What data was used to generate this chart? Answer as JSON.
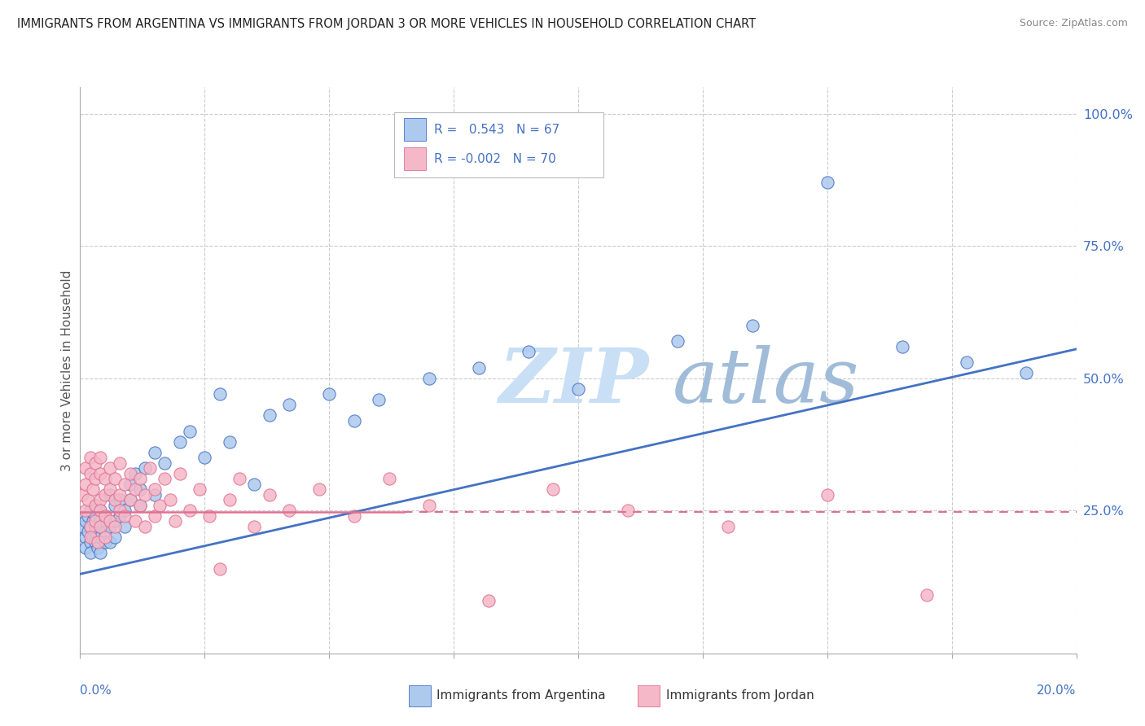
{
  "title": "IMMIGRANTS FROM ARGENTINA VS IMMIGRANTS FROM JORDAN 3 OR MORE VEHICLES IN HOUSEHOLD CORRELATION CHART",
  "source": "Source: ZipAtlas.com",
  "ylabel_label": "3 or more Vehicles in Household",
  "legend_argentina": "Immigrants from Argentina",
  "legend_jordan": "Immigrants from Jordan",
  "R_argentina": 0.543,
  "N_argentina": 67,
  "R_jordan": -0.002,
  "N_jordan": 70,
  "color_argentina": "#adc9ed",
  "color_argentina_dark": "#4472c4",
  "color_jordan": "#f5b8c8",
  "color_jordan_dark": "#e07090",
  "color_jordan_line": "#e07090",
  "watermark_zip": "ZIP",
  "watermark_atlas": "atlas",
  "watermark_color_zip": "#c8dff5",
  "watermark_color_atlas": "#b0c8e8",
  "background_color": "#ffffff",
  "xlim": [
    0.0,
    0.2
  ],
  "ylim": [
    -0.02,
    1.05
  ],
  "argentina_line_x0": 0.0,
  "argentina_line_y0": 0.13,
  "argentina_line_x1": 0.2,
  "argentina_line_y1": 0.555,
  "jordan_line_x0": 0.0,
  "jordan_line_y0": 0.248,
  "jordan_line_x1": 0.2,
  "jordan_line_y1": 0.248,
  "argentina_scatter_x": [
    0.0005,
    0.001,
    0.001,
    0.001,
    0.0015,
    0.0015,
    0.002,
    0.002,
    0.002,
    0.002,
    0.0025,
    0.0025,
    0.003,
    0.003,
    0.003,
    0.003,
    0.003,
    0.0035,
    0.004,
    0.004,
    0.004,
    0.004,
    0.004,
    0.005,
    0.005,
    0.005,
    0.005,
    0.006,
    0.006,
    0.006,
    0.007,
    0.007,
    0.007,
    0.008,
    0.008,
    0.009,
    0.009,
    0.01,
    0.01,
    0.011,
    0.012,
    0.012,
    0.013,
    0.015,
    0.015,
    0.017,
    0.02,
    0.022,
    0.025,
    0.028,
    0.03,
    0.035,
    0.038,
    0.042,
    0.05,
    0.055,
    0.06,
    0.07,
    0.08,
    0.09,
    0.1,
    0.12,
    0.135,
    0.15,
    0.165,
    0.178,
    0.19
  ],
  "argentina_scatter_y": [
    0.22,
    0.2,
    0.23,
    0.18,
    0.21,
    0.24,
    0.19,
    0.22,
    0.25,
    0.17,
    0.23,
    0.2,
    0.22,
    0.19,
    0.26,
    0.21,
    0.24,
    0.18,
    0.23,
    0.2,
    0.25,
    0.22,
    0.17,
    0.24,
    0.21,
    0.19,
    0.23,
    0.28,
    0.22,
    0.19,
    0.26,
    0.23,
    0.2,
    0.27,
    0.24,
    0.25,
    0.22,
    0.3,
    0.27,
    0.32,
    0.29,
    0.26,
    0.33,
    0.28,
    0.36,
    0.34,
    0.38,
    0.4,
    0.35,
    0.47,
    0.38,
    0.3,
    0.43,
    0.45,
    0.47,
    0.42,
    0.46,
    0.5,
    0.52,
    0.55,
    0.48,
    0.57,
    0.6,
    0.87,
    0.56,
    0.53,
    0.51
  ],
  "jordan_scatter_x": [
    0.0005,
    0.001,
    0.001,
    0.001,
    0.0015,
    0.002,
    0.002,
    0.002,
    0.002,
    0.0025,
    0.003,
    0.003,
    0.003,
    0.003,
    0.0035,
    0.004,
    0.004,
    0.004,
    0.004,
    0.004,
    0.005,
    0.005,
    0.005,
    0.005,
    0.006,
    0.006,
    0.006,
    0.007,
    0.007,
    0.007,
    0.008,
    0.008,
    0.008,
    0.009,
    0.009,
    0.01,
    0.01,
    0.011,
    0.011,
    0.012,
    0.012,
    0.013,
    0.013,
    0.014,
    0.015,
    0.015,
    0.016,
    0.017,
    0.018,
    0.019,
    0.02,
    0.022,
    0.024,
    0.026,
    0.028,
    0.03,
    0.032,
    0.035,
    0.038,
    0.042,
    0.048,
    0.055,
    0.062,
    0.07,
    0.082,
    0.095,
    0.11,
    0.13,
    0.15,
    0.17
  ],
  "jordan_scatter_y": [
    0.28,
    0.3,
    0.25,
    0.33,
    0.27,
    0.32,
    0.22,
    0.35,
    0.2,
    0.29,
    0.26,
    0.31,
    0.23,
    0.34,
    0.19,
    0.27,
    0.32,
    0.22,
    0.35,
    0.25,
    0.28,
    0.24,
    0.31,
    0.2,
    0.29,
    0.33,
    0.23,
    0.27,
    0.31,
    0.22,
    0.28,
    0.25,
    0.34,
    0.24,
    0.3,
    0.27,
    0.32,
    0.23,
    0.29,
    0.26,
    0.31,
    0.22,
    0.28,
    0.33,
    0.24,
    0.29,
    0.26,
    0.31,
    0.27,
    0.23,
    0.32,
    0.25,
    0.29,
    0.24,
    0.14,
    0.27,
    0.31,
    0.22,
    0.28,
    0.25,
    0.29,
    0.24,
    0.31,
    0.26,
    0.08,
    0.29,
    0.25,
    0.22,
    0.28,
    0.09
  ]
}
